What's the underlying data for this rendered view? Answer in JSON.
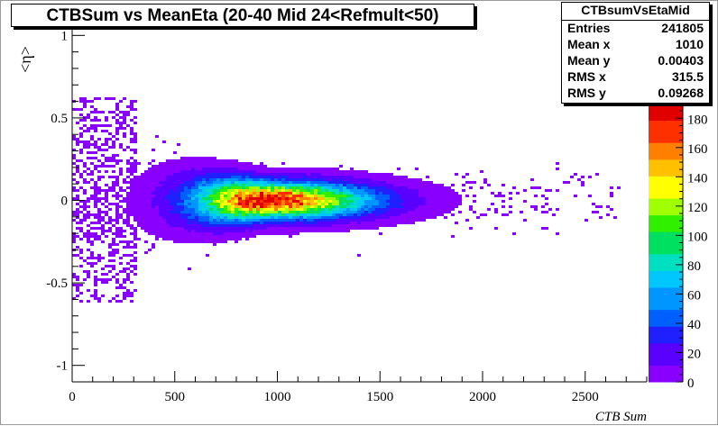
{
  "chart_data": {
    "type": "heatmap",
    "title": "CTBSum vs MeanEta (20-40 Mid 24<Refmult<50)",
    "xlabel": "CTB Sum",
    "ylabel": "<η>",
    "xlim": [
      0,
      2800
    ],
    "ylim": [
      -1.1,
      1.1
    ],
    "x_ticks": [
      0,
      500,
      1000,
      1500,
      2000,
      2500
    ],
    "y_ticks": [
      -1,
      -0.5,
      0,
      0.5,
      1
    ],
    "y_tick_labels": [
      "-1",
      "-0.5",
      "0",
      "0.5",
      "1"
    ],
    "z_range": [
      0,
      190
    ],
    "z_ticks": [
      0,
      20,
      40,
      60,
      80,
      100,
      120,
      140,
      160,
      180
    ],
    "palette": [
      "#8a00ff",
      "#5a00ff",
      "#2020ff",
      "#0060ff",
      "#0096ff",
      "#00c8ff",
      "#00e0c0",
      "#00e060",
      "#30f000",
      "#a0ff00",
      "#ffff00",
      "#ffc000",
      "#ff8000",
      "#ff3000",
      "#e00000"
    ],
    "peak": {
      "x": 950,
      "y": 0.0,
      "value": 190
    },
    "grid": false,
    "stats": {
      "name": "CTBsumVsEtaMid",
      "rows": [
        {
          "label": "Entries",
          "value": "241805"
        },
        {
          "label": "Mean x",
          "value": "1010"
        },
        {
          "label": "Mean y",
          "value": "0.00403"
        },
        {
          "label": "RMS x",
          "value": "315.5"
        },
        {
          "label": "RMS y",
          "value": "0.09268"
        }
      ]
    }
  }
}
